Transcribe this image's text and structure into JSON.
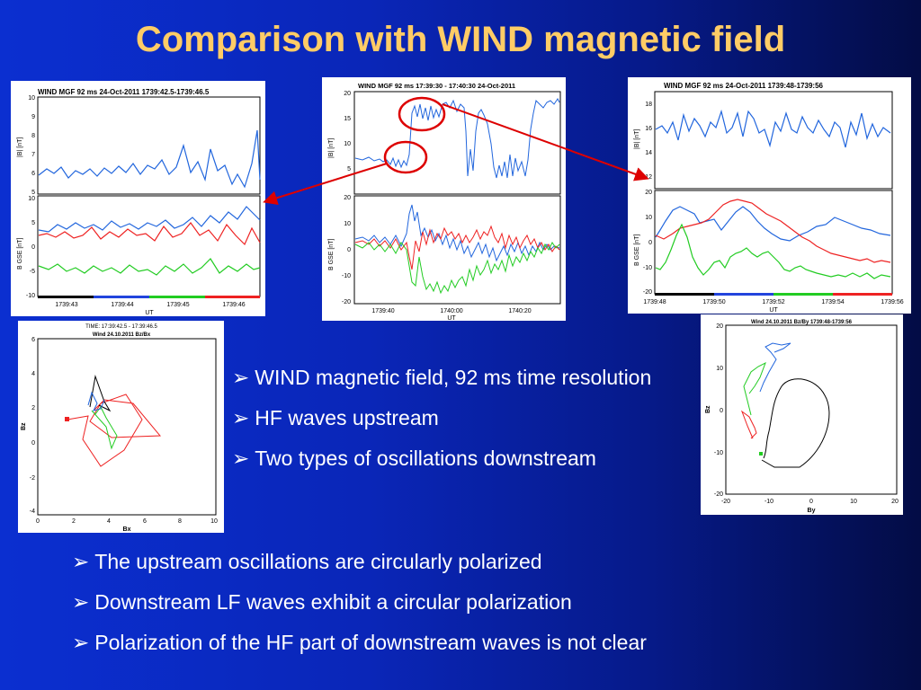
{
  "slide": {
    "title": "Comparison with WIND magnetic field",
    "bullets_right": [
      "WIND magnetic field, 92 ms time resolution",
      "HF waves upstream",
      "Two types of oscillations downstream"
    ],
    "bullets_bottom": [
      "The upstream oscillations are circularly polarized",
      "Downstream LF waves exhibit a circular polarization",
      "Polarization of the HF part of downstream waves is not clear"
    ],
    "bullet_glyph": "➢"
  },
  "colors": {
    "title": "#ffcc66",
    "bx": "#ee2222",
    "by": "#2266dd",
    "bz": "#22cc22",
    "annotation": "#dd0000"
  },
  "figures": {
    "left_timeseries": {
      "title": "WIND MGF 92 ms 24-Oct-2011 1739:42.5-1739:46.5",
      "top_ylabel": "|B| [nT]",
      "top_yticks": [
        "10",
        "9",
        "8",
        "7",
        "6",
        "5"
      ],
      "bottom_ylabel": "B GSE [nT]",
      "bottom_yticks": [
        "10",
        "5",
        "0",
        "-5",
        "-10"
      ],
      "xticks": [
        "1739:43",
        "1739:44",
        "1739:45",
        "1739:46"
      ],
      "xlabel": "UT"
    },
    "center_timeseries": {
      "title": "WIND MGF 92 ms 17:39:30 - 17:40:30 24-Oct-2011",
      "top_ylabel": "|B| [nT]",
      "top_yticks": [
        "20",
        "15",
        "10",
        "5"
      ],
      "bottom_ylabel": "B GSE [nT]",
      "bottom_yticks": [
        "20",
        "10",
        "0",
        "-10",
        "-20"
      ],
      "xticks": [
        "1739:40",
        "1740:00",
        "1740:20"
      ],
      "xlabel": "UT"
    },
    "right_timeseries": {
      "title": "WIND MGF 92 ms 24-Oct-2011 1739:48-1739:56",
      "top_ylabel": "|B| [nT]",
      "top_yticks": [
        "18",
        "16",
        "14",
        "12"
      ],
      "bottom_ylabel": "B GSE [nT]",
      "bottom_yticks": [
        "20",
        "10",
        "0",
        "-10",
        "-20"
      ],
      "xticks": [
        "1739:48",
        "1739:50",
        "1739:52",
        "1739:54",
        "1739:56"
      ],
      "xlabel": "UT"
    },
    "left_hodogram": {
      "title_line1": "TIME: 17:39:42.5 - 17:39:46.5",
      "title_line2": "Wind 24.10.2011 Bz/Bx",
      "xlabel": "Bx",
      "ylabel": "Bz",
      "xticks": [
        "0",
        "2",
        "4",
        "6",
        "8",
        "10"
      ],
      "yticks": [
        "6",
        "4",
        "2",
        "0",
        "-2",
        "-4",
        "-6"
      ]
    },
    "right_hodogram": {
      "title": "Wind 24.10.2011 Bz/By 1739:48-1739:56",
      "xlabel": "By",
      "ylabel": "Bz",
      "xticks": [
        "-20",
        "-10",
        "0",
        "10",
        "20"
      ],
      "yticks": [
        "20",
        "10",
        "0",
        "-10",
        "-20"
      ]
    }
  }
}
